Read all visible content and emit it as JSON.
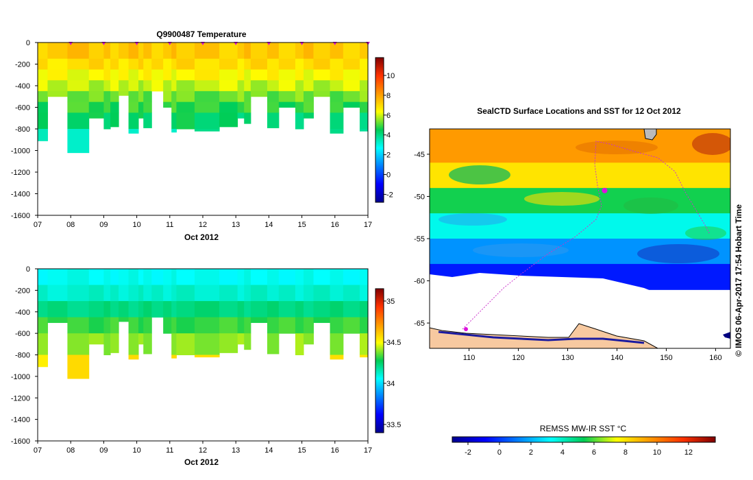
{
  "chart_data": [
    {
      "type": "heatmap",
      "panel": "temperature-section",
      "title": "Q9900487  Temperature",
      "xlabel": "Oct 2012",
      "x_ticks": [
        "07",
        "08",
        "09",
        "10",
        "11",
        "12",
        "13",
        "14",
        "15",
        "16",
        "17"
      ],
      "xlim": [
        7,
        17
      ],
      "ylim": [
        -1600,
        0
      ],
      "y_ticks": [
        0,
        -200,
        -400,
        -600,
        -800,
        -1000,
        -1200,
        -1400,
        -1600
      ],
      "colorbar": {
        "ticks": [
          -2,
          0,
          2,
          4,
          6,
          8,
          10
        ],
        "range": [
          -2.8,
          11.8
        ]
      },
      "profile_markers_day": [
        8.0,
        9.0,
        10.0,
        11.0,
        12.0,
        13.0,
        14.0,
        15.0,
        16.0,
        17.0
      ],
      "layers": [
        {
          "top": 0,
          "bottom": -150,
          "value": 7.3
        },
        {
          "top": -150,
          "bottom": -250,
          "value": 6.9
        },
        {
          "top": -250,
          "bottom": -350,
          "value": 6.4
        },
        {
          "top": -350,
          "bottom": -450,
          "value": 5.9
        },
        {
          "top": -450,
          "bottom": -550,
          "value": 5.3
        },
        {
          "top": -550,
          "bottom": -650,
          "value": 4.8
        },
        {
          "top": -650,
          "bottom": -800,
          "value": 4.3
        },
        {
          "top": -800,
          "bottom": -1030,
          "value": 3.6
        }
      ],
      "profiles": [
        {
          "x0": 7.0,
          "x1": 7.3,
          "max_depth": -910
        },
        {
          "x0": 7.3,
          "x1": 7.9,
          "max_depth": -500
        },
        {
          "x0": 7.9,
          "x1": 8.55,
          "max_depth": -1020
        },
        {
          "x0": 8.55,
          "x1": 9.0,
          "max_depth": -700
        },
        {
          "x0": 9.0,
          "x1": 9.2,
          "max_depth": -800
        },
        {
          "x0": 9.2,
          "x1": 9.45,
          "max_depth": -780
        },
        {
          "x0": 9.45,
          "x1": 9.75,
          "max_depth": -490
        },
        {
          "x0": 9.75,
          "x1": 10.05,
          "max_depth": -840
        },
        {
          "x0": 10.05,
          "x1": 10.2,
          "max_depth": -700
        },
        {
          "x0": 10.2,
          "x1": 10.45,
          "max_depth": -790
        },
        {
          "x0": 10.45,
          "x1": 10.8,
          "max_depth": -450
        },
        {
          "x0": 10.8,
          "x1": 11.05,
          "max_depth": -600
        },
        {
          "x0": 11.05,
          "x1": 11.2,
          "max_depth": -830
        },
        {
          "x0": 11.2,
          "x1": 11.75,
          "max_depth": -800
        },
        {
          "x0": 11.75,
          "x1": 12.5,
          "max_depth": -820
        },
        {
          "x0": 12.5,
          "x1": 13.05,
          "max_depth": -780
        },
        {
          "x0": 13.05,
          "x1": 13.25,
          "max_depth": -700
        },
        {
          "x0": 13.25,
          "x1": 13.45,
          "max_depth": -750
        },
        {
          "x0": 13.45,
          "x1": 13.95,
          "max_depth": -500
        },
        {
          "x0": 13.95,
          "x1": 14.3,
          "max_depth": -790
        },
        {
          "x0": 14.3,
          "x1": 14.8,
          "max_depth": -600
        },
        {
          "x0": 14.8,
          "x1": 15.05,
          "max_depth": -800
        },
        {
          "x0": 15.05,
          "x1": 15.35,
          "max_depth": -700
        },
        {
          "x0": 15.35,
          "x1": 15.85,
          "max_depth": -500
        },
        {
          "x0": 15.85,
          "x1": 16.25,
          "max_depth": -840
        },
        {
          "x0": 16.25,
          "x1": 16.75,
          "max_depth": -600
        },
        {
          "x0": 16.75,
          "x1": 17.1,
          "max_depth": -820
        }
      ]
    },
    {
      "type": "heatmap",
      "panel": "salinity-section",
      "title": "",
      "xlabel": "Oct 2012",
      "x_ticks": [
        "07",
        "08",
        "09",
        "10",
        "11",
        "12",
        "13",
        "14",
        "15",
        "16",
        "17"
      ],
      "xlim": [
        7,
        17
      ],
      "ylim": [
        -1600,
        0
      ],
      "y_ticks": [
        0,
        -200,
        -400,
        -600,
        -800,
        -1000,
        -1200,
        -1400,
        -1600
      ],
      "colorbar": {
        "ticks": [
          33.5,
          34,
          34.5,
          35
        ],
        "range": [
          33.4,
          35.15
        ]
      },
      "layers": [
        {
          "top": 0,
          "bottom": -150,
          "value": 34.07
        },
        {
          "top": -150,
          "bottom": -300,
          "value": 34.12
        },
        {
          "top": -300,
          "bottom": -450,
          "value": 34.22
        },
        {
          "top": -450,
          "bottom": -600,
          "value": 34.32
        },
        {
          "top": -600,
          "bottom": -800,
          "value": 34.4
        },
        {
          "top": -800,
          "bottom": -1030,
          "value": 34.55
        }
      ],
      "profiles_same_as": "temperature-section"
    },
    {
      "type": "map",
      "panel": "sst-map",
      "title": "SealCTD Surface Locations and SST for 12 Oct 2012",
      "lon_range": [
        102,
        163
      ],
      "lat_range": [
        -68,
        -42
      ],
      "x_ticks": [
        110,
        120,
        130,
        140,
        150,
        160
      ],
      "y_ticks": [
        -45,
        -50,
        -55,
        -60,
        -65
      ],
      "colorbar_label": "REMSS MW-IR SST °C",
      "colorbar_ticks": [
        -2,
        0,
        2,
        4,
        6,
        8,
        10,
        12
      ],
      "colorbar_range": [
        -3,
        13.7
      ],
      "sst_bands": [
        {
          "lat_top": -42,
          "lat_bottom": -46,
          "sst": 9.5
        },
        {
          "lat_top": -46,
          "lat_bottom": -49,
          "sst": 8.0
        },
        {
          "lat_top": -49,
          "lat_bottom": -52,
          "sst": 5.5
        },
        {
          "lat_top": -52,
          "lat_bottom": -55,
          "sst": 3.5
        },
        {
          "lat_top": -55,
          "lat_bottom": -58,
          "sst": 1.5
        },
        {
          "lat_top": -58,
          "lat_bottom": -61,
          "sst": -0.5
        }
      ],
      "seal_position": {
        "lon": 137.5,
        "lat": -49.3
      },
      "credit": "© IMOS 06-Apr-2017 17:54 Hobart Time"
    }
  ],
  "colors": {
    "marker": "#dd11dd",
    "land": "#f7c9a0",
    "coast": "#000000",
    "track": "#cc33cc"
  }
}
